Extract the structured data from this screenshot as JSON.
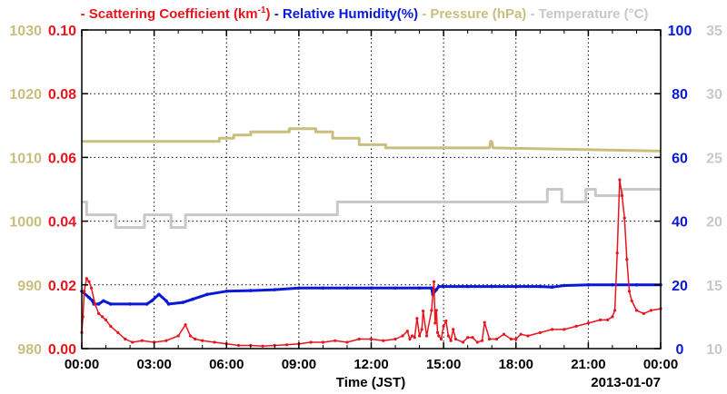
{
  "legend": {
    "dash": "-",
    "scattering_label": "Scattering Coefficient (km",
    "scattering_sup": "-1",
    "scattering_close": ")",
    "humidity_label": "Relative Humidity(%)",
    "pressure_label": "Pressure (hPa)",
    "temperature_label": "Temperature (°C)"
  },
  "xaxis": {
    "title": "Time (JST)",
    "ticks": [
      "00:00",
      "03:00",
      "06:00",
      "09:00",
      "12:00",
      "15:00",
      "18:00",
      "21:00",
      "00:00"
    ],
    "date_label": "2013-01-07"
  },
  "colors": {
    "scattering": "#e8141c",
    "humidity": "#0a19d8",
    "pressure": "#c8be7e",
    "temperature": "#c8c8c8",
    "axis": "#000000"
  },
  "chart_data": {
    "type": "line",
    "x_unit": "hours since 00:00 JST, 2013-01-07",
    "xlim": [
      0,
      24
    ],
    "grid": true,
    "legend_position": "top",
    "axes": {
      "pressure": {
        "label": "Pressure (hPa)",
        "ticks": [
          "980",
          "990",
          "1000",
          "1010",
          "1020",
          "1030"
        ],
        "ylim": [
          980,
          1030
        ]
      },
      "scattering": {
        "label": "Scattering Coefficient (km-1)",
        "ticks": [
          "0.00",
          "0.02",
          "0.04",
          "0.06",
          "0.08",
          "0.10"
        ],
        "ylim": [
          0,
          0.1
        ]
      },
      "humidity": {
        "label": "Relative Humidity(%)",
        "ticks": [
          "0",
          "20",
          "40",
          "60",
          "80",
          "100"
        ],
        "ylim": [
          0,
          100
        ]
      },
      "temperature": {
        "label": "Temperature (°C)",
        "ticks": [
          "10",
          "15",
          "20",
          "25",
          "30",
          "35"
        ],
        "ylim": [
          10,
          35
        ]
      }
    },
    "series": [
      {
        "name": "Pressure (hPa)",
        "axis": "pressure",
        "x": [
          0,
          5.7,
          5.7,
          6.3,
          6.3,
          7.0,
          7.0,
          8.6,
          8.6,
          9.7,
          9.7,
          10.4,
          10.4,
          11.5,
          11.5,
          12.6,
          12.6,
          16.9,
          16.95,
          17.0,
          17.05,
          24
        ],
        "y": [
          1012.5,
          1012.5,
          1013.0,
          1013.0,
          1013.5,
          1013.5,
          1014.0,
          1014.0,
          1014.5,
          1014.5,
          1014.0,
          1014.0,
          1013.0,
          1013.0,
          1012.0,
          1012.0,
          1011.5,
          1011.5,
          1012.5,
          1012.5,
          1011.5,
          1011.0
        ]
      },
      {
        "name": "Temperature (°C)",
        "axis": "temperature",
        "x": [
          0,
          0.2,
          0.2,
          1.4,
          1.4,
          2.6,
          2.6,
          3.7,
          3.7,
          4.3,
          4.3,
          10.6,
          10.6,
          19.3,
          19.3,
          19.9,
          19.9,
          20.9,
          20.9,
          21.3,
          21.3,
          22.4,
          22.4,
          22.9,
          22.9,
          24
        ],
        "y": [
          21.5,
          21.5,
          20.5,
          20.5,
          19.5,
          19.5,
          20.5,
          20.5,
          19.5,
          19.5,
          20.5,
          20.5,
          21.5,
          21.5,
          22.5,
          22.5,
          21.5,
          21.5,
          22.5,
          22.5,
          22.0,
          22.0,
          22.5,
          22.5,
          22.5,
          22.5
        ]
      },
      {
        "name": "Relative Humidity(%)",
        "axis": "humidity",
        "x": [
          0,
          0.3,
          0.45,
          0.5,
          0.7,
          0.9,
          1.2,
          2.0,
          2.7,
          2.9,
          3.2,
          3.5,
          3.6,
          4.2,
          4.6,
          5.2,
          6.0,
          7.0,
          8.0,
          9.0,
          10.0,
          11.0,
          12.0,
          13.0,
          14.0,
          14.5,
          14.55,
          14.7,
          14.8,
          15.0,
          16.0,
          17.0,
          18.0,
          19.0,
          19.5,
          20.0,
          21.0,
          22.0,
          23.0,
          24.0
        ],
        "y": [
          18,
          16,
          15,
          14,
          14,
          15,
          14,
          14,
          14,
          15,
          17,
          15,
          14,
          14.5,
          15.5,
          17,
          18,
          18.2,
          18.5,
          19,
          19,
          19,
          19,
          19,
          19,
          19,
          17,
          18.5,
          19.5,
          19.5,
          19.5,
          19.5,
          19.5,
          19.5,
          19.3,
          19.8,
          20,
          20,
          20,
          20
        ]
      },
      {
        "name": "Scattering Coefficient (km-1)",
        "axis": "scattering",
        "x": [
          0,
          0.05,
          0.1,
          0.2,
          0.3,
          0.4,
          0.55,
          0.7,
          0.85,
          1.0,
          1.2,
          1.5,
          1.8,
          2.1,
          2.5,
          3.0,
          3.5,
          4.0,
          4.3,
          4.5,
          4.7,
          5.0,
          5.5,
          6.0,
          6.5,
          7.0,
          7.5,
          8.0,
          8.5,
          9.0,
          9.5,
          10.0,
          10.5,
          11.0,
          11.5,
          12.0,
          12.5,
          13.0,
          13.3,
          13.5,
          13.6,
          13.7,
          13.8,
          13.9,
          14.0,
          14.1,
          14.15,
          14.3,
          14.5,
          14.6,
          14.65,
          14.7,
          14.75,
          14.8,
          14.9,
          15.0,
          15.1,
          15.2,
          15.3,
          15.4,
          15.5,
          15.8,
          16.0,
          16.2,
          16.4,
          16.6,
          16.7,
          16.9,
          17.2,
          17.5,
          17.8,
          18.0,
          18.2,
          18.5,
          19.0,
          19.5,
          20.0,
          20.5,
          21.0,
          21.5,
          21.8,
          22.0,
          22.1,
          22.2,
          22.3,
          22.4,
          22.5,
          22.6,
          22.7,
          22.8,
          23.0,
          23.3,
          23.6,
          24.0
        ],
        "y": [
          0.005,
          0.01,
          0.018,
          0.022,
          0.021,
          0.019,
          0.014,
          0.011,
          0.01,
          0.009,
          0.007,
          0.005,
          0.003,
          0.002,
          0.0025,
          0.002,
          0.0025,
          0.004,
          0.0075,
          0.004,
          0.003,
          0.0025,
          0.002,
          0.0015,
          0.001,
          0.001,
          0.0008,
          0.001,
          0.0012,
          0.0015,
          0.002,
          0.002,
          0.0025,
          0.002,
          0.003,
          0.003,
          0.0025,
          0.003,
          0.004,
          0.0055,
          0.003,
          0.004,
          0.0035,
          0.0095,
          0.004,
          0.006,
          0.0118,
          0.004,
          0.012,
          0.021,
          0.008,
          0.012,
          0.005,
          0.004,
          0.003,
          0.007,
          0.0087,
          0.004,
          0.0025,
          0.006,
          0.003,
          0.002,
          0.0035,
          0.0035,
          0.002,
          0.0025,
          0.0082,
          0.003,
          0.003,
          0.0045,
          0.003,
          0.003,
          0.0045,
          0.004,
          0.005,
          0.006,
          0.006,
          0.007,
          0.008,
          0.009,
          0.009,
          0.01,
          0.012,
          0.03,
          0.053,
          0.048,
          0.041,
          0.028,
          0.018,
          0.015,
          0.012,
          0.011,
          0.012,
          0.0125
        ]
      }
    ]
  }
}
